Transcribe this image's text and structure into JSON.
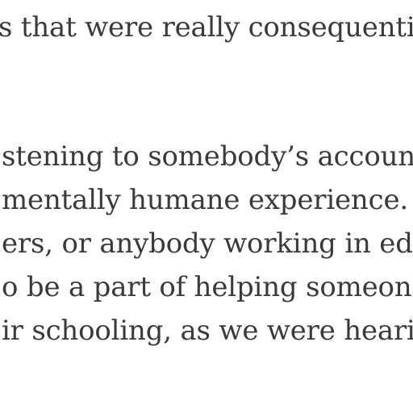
{
  "document": {
    "paragraph_1": {
      "line_1": "s that were really consequential"
    },
    "paragraph_2": {
      "line_1": "stening to somebody’s account o",
      "line_2": "mentally humane experience. I",
      "line_3": "ers, or anybody working in educ",
      "line_4": "o be a part of helping someone",
      "line_5": "ir schooling, as we were hearin"
    }
  }
}
